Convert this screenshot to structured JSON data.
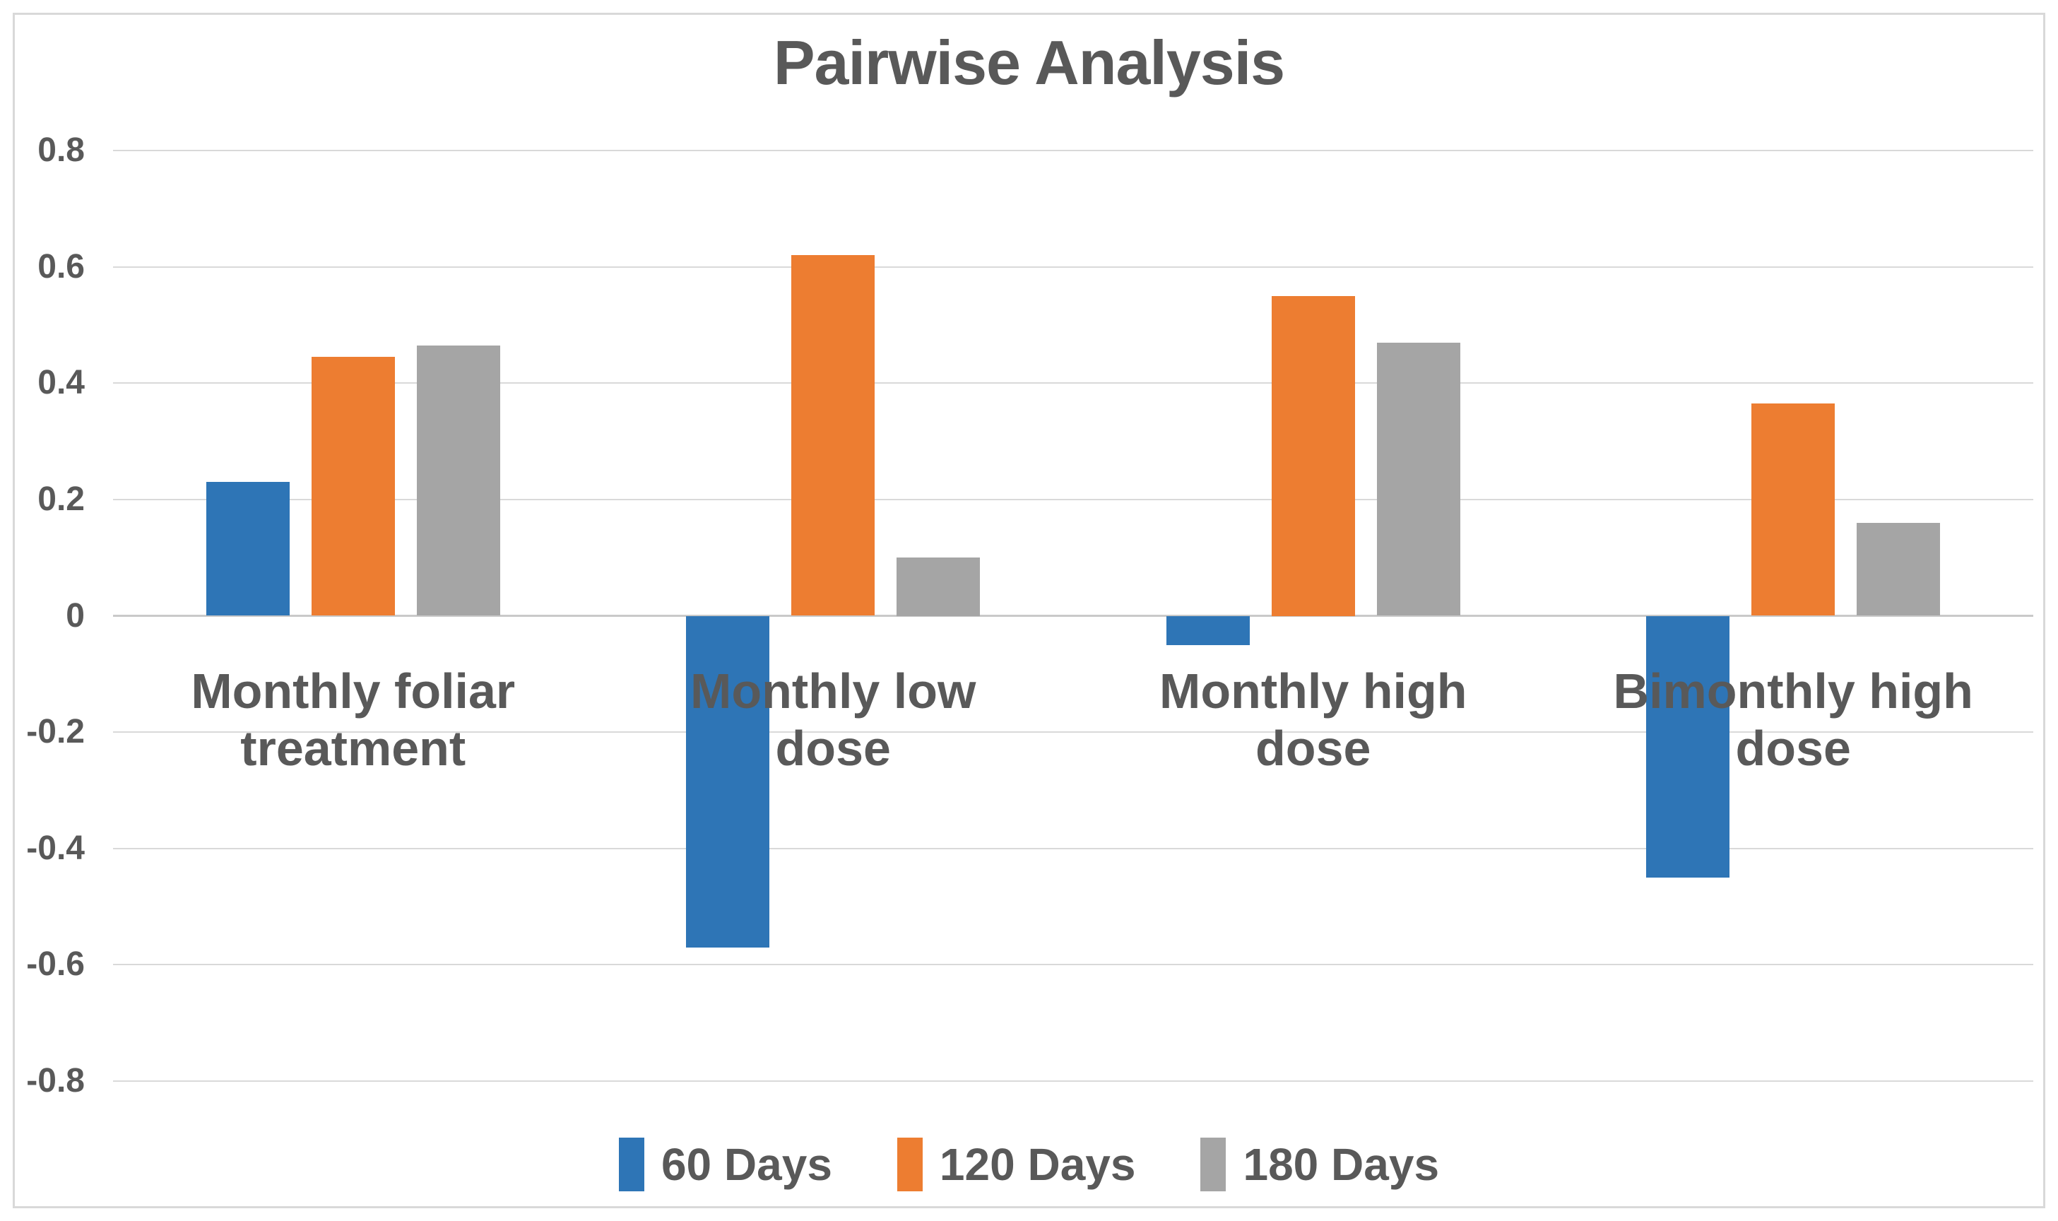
{
  "title": "Pairwise Analysis",
  "chart_data": {
    "type": "bar",
    "title": "Pairwise Analysis",
    "categories": [
      "Monthly foliar treatment",
      "Monthly low dose",
      "Monthly high dose",
      "Bimonthly high dose"
    ],
    "series": [
      {
        "name": "60 Days",
        "color": "#2E75B6",
        "values": [
          0.23,
          -0.57,
          -0.05,
          -0.45
        ]
      },
      {
        "name": "120 Days",
        "color": "#ED7D31",
        "values": [
          0.445,
          0.62,
          0.55,
          0.365
        ]
      },
      {
        "name": "180 Days",
        "color": "#A5A5A5",
        "values": [
          0.465,
          0.1,
          0.47,
          0.16
        ]
      }
    ],
    "y_axis": {
      "min": -0.8,
      "max": 0.8,
      "step": 0.2,
      "tick_labels": [
        "0.8",
        "0.6",
        "0.4",
        "0.2",
        "0",
        "-0.2",
        "-0.4",
        "-0.6",
        "-0.8"
      ]
    },
    "grid": true,
    "legend_position": "bottom",
    "xlabel": "",
    "ylabel": ""
  },
  "legend": {
    "items": [
      {
        "label": "60 Days",
        "color": "#2E75B6"
      },
      {
        "label": "120 Days",
        "color": "#ED7D31"
      },
      {
        "label": "180 Days",
        "color": "#A5A5A5"
      }
    ]
  },
  "colors": {
    "text": "#595959",
    "gridline": "#D9D9D9",
    "zero_line": "#C9C9C9",
    "border": "#D9D9D9",
    "background": "#FFFFFF",
    "series_blue": "#2E75B6",
    "series_orange": "#ED7D31",
    "series_gray": "#A5A5A5"
  }
}
